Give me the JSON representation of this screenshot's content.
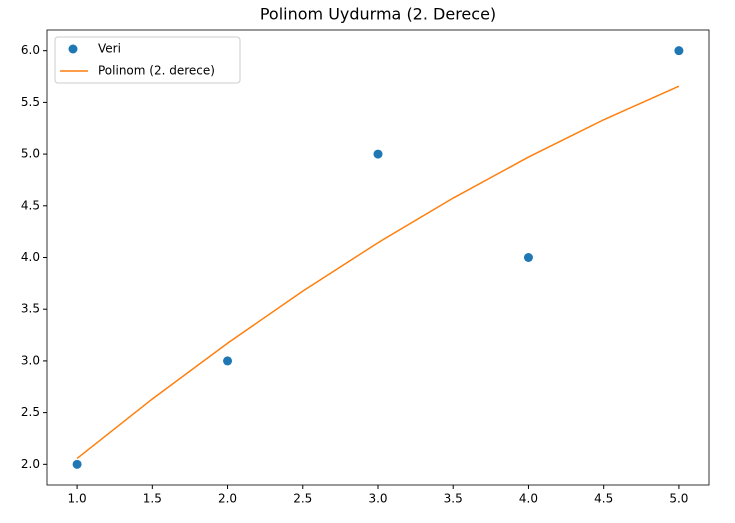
{
  "chart_data": {
    "type": "combo",
    "title": "Polinom Uydurma (2. Derece)",
    "series": [
      {
        "name": "Veri",
        "type": "scatter",
        "color": "#1f77b4",
        "x": [
          1,
          2,
          3,
          4,
          5
        ],
        "values": [
          2,
          3,
          5,
          4,
          6
        ]
      },
      {
        "name": "Polinom (2. derece)",
        "type": "line",
        "color": "#ff7f0e",
        "x": [
          1,
          1.5,
          2,
          2.5,
          3,
          3.5,
          4,
          4.5,
          5
        ],
        "values": [
          2.057,
          2.632,
          3.171,
          3.675,
          4.143,
          4.575,
          4.971,
          5.332,
          5.657
        ]
      }
    ],
    "xlim": [
      0.8,
      5.2
    ],
    "ylim": [
      1.8,
      6.2
    ],
    "xticks": [
      {
        "value": 1,
        "label": "1.0"
      },
      {
        "value": 1.5,
        "label": "1.5"
      },
      {
        "value": 2,
        "label": "2.0"
      },
      {
        "value": 2.5,
        "label": "2.5"
      },
      {
        "value": 3,
        "label": "3.0"
      },
      {
        "value": 3.5,
        "label": "3.5"
      },
      {
        "value": 4,
        "label": "4.0"
      },
      {
        "value": 4.5,
        "label": "4.5"
      },
      {
        "value": 5,
        "label": "5.0"
      }
    ],
    "yticks": [
      {
        "value": 2,
        "label": "2.0"
      },
      {
        "value": 2.5,
        "label": "2.5"
      },
      {
        "value": 3,
        "label": "3.0"
      },
      {
        "value": 3.5,
        "label": "3.5"
      },
      {
        "value": 4,
        "label": "4.0"
      },
      {
        "value": 4.5,
        "label": "4.5"
      },
      {
        "value": 5,
        "label": "5.0"
      },
      {
        "value": 5.5,
        "label": "5.5"
      },
      {
        "value": 6,
        "label": "6.0"
      }
    ],
    "legend": "upper-left",
    "grid": false
  }
}
